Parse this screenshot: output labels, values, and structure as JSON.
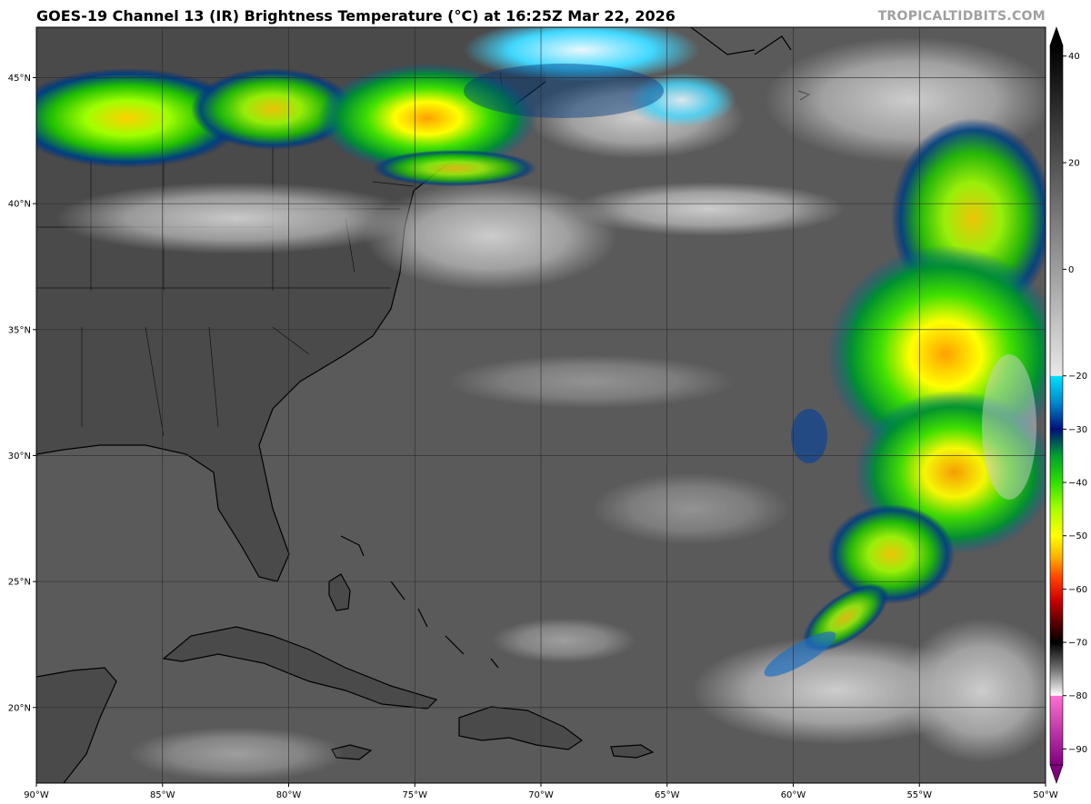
{
  "header": {
    "title": "GOES-19 Channel 13 (IR) Brightness Temperature (°C) at 16:25Z Mar 22, 2026",
    "site": "TROPICALTIDBITS.COM"
  },
  "map": {
    "lon_range": [
      -90,
      -50
    ],
    "lat_range": [
      17,
      47
    ],
    "lat_ticks": [
      {
        "value": 45,
        "label": "45°N"
      },
      {
        "value": 40,
        "label": "40°N"
      },
      {
        "value": 35,
        "label": "35°N"
      },
      {
        "value": 30,
        "label": "30°N"
      },
      {
        "value": 25,
        "label": "25°N"
      },
      {
        "value": 20,
        "label": "20°N"
      }
    ],
    "lon_ticks": [
      {
        "value": -90,
        "label": "90°W"
      },
      {
        "value": -85,
        "label": "85°W"
      },
      {
        "value": -80,
        "label": "80°W"
      },
      {
        "value": -75,
        "label": "75°W"
      },
      {
        "value": -70,
        "label": "70°W"
      },
      {
        "value": -65,
        "label": "65°W"
      },
      {
        "value": -60,
        "label": "60°W"
      },
      {
        "value": -55,
        "label": "55°W"
      },
      {
        "value": -50,
        "label": "50°W"
      }
    ],
    "colors": {
      "ocean": "#5a5a5a",
      "land": "#4a4a4a",
      "coast": "#000000",
      "grid": "#2a2a2a"
    }
  },
  "colorbar": {
    "min": -93,
    "max": 42,
    "ticks": [
      {
        "value": 40,
        "label": "40"
      },
      {
        "value": 20,
        "label": "20"
      },
      {
        "value": 0,
        "label": "0"
      },
      {
        "value": -20,
        "label": "−20"
      },
      {
        "value": -30,
        "label": "−30"
      },
      {
        "value": -40,
        "label": "−40"
      },
      {
        "value": -50,
        "label": "−50"
      },
      {
        "value": -60,
        "label": "−60"
      },
      {
        "value": -70,
        "label": "−70"
      },
      {
        "value": -80,
        "label": "−80"
      },
      {
        "value": -90,
        "label": "−90"
      }
    ],
    "stops": [
      {
        "value": 42,
        "color": "#000000"
      },
      {
        "value": -20,
        "color": "#e8e8e8"
      },
      {
        "value": -20.01,
        "color": "#00e0ff"
      },
      {
        "value": -25,
        "color": "#0088cc"
      },
      {
        "value": -30,
        "color": "#00107a"
      },
      {
        "value": -35,
        "color": "#00a030"
      },
      {
        "value": -40,
        "color": "#30e000"
      },
      {
        "value": -45,
        "color": "#a8ff00"
      },
      {
        "value": -50,
        "color": "#ffff00"
      },
      {
        "value": -54,
        "color": "#ffb000"
      },
      {
        "value": -58,
        "color": "#ff4000"
      },
      {
        "value": -62,
        "color": "#d00000"
      },
      {
        "value": -66,
        "color": "#600000"
      },
      {
        "value": -70,
        "color": "#000000"
      },
      {
        "value": -75,
        "color": "#707070"
      },
      {
        "value": -80,
        "color": "#ffffff"
      },
      {
        "value": -80.01,
        "color": "#ff70d0"
      },
      {
        "value": -93,
        "color": "#800080"
      }
    ]
  }
}
